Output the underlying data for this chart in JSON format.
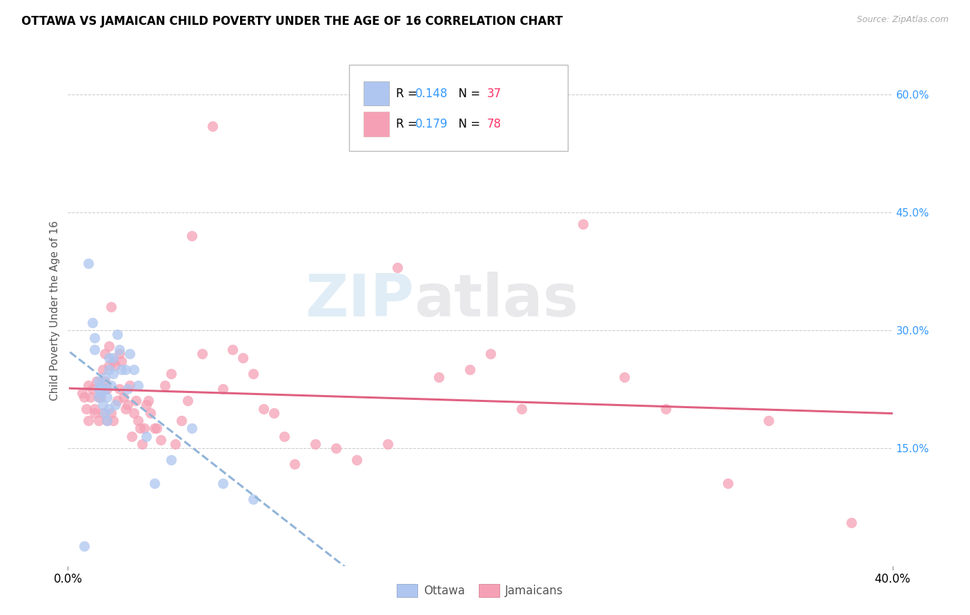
{
  "title": "OTTAWA VS JAMAICAN CHILD POVERTY UNDER THE AGE OF 16 CORRELATION CHART",
  "source": "Source: ZipAtlas.com",
  "ylabel": "Child Poverty Under the Age of 16",
  "watermark_line1": "ZIP",
  "watermark_line2": "atlas",
  "xlim": [
    0.0,
    0.4
  ],
  "ylim": [
    0.0,
    0.65
  ],
  "yticks": [
    0.15,
    0.3,
    0.45,
    0.6
  ],
  "ytick_labels": [
    "15.0%",
    "30.0%",
    "45.0%",
    "60.0%"
  ],
  "xtick_left_label": "0.0%",
  "xtick_right_label": "40.0%",
  "ottawa_color": "#aec6f0",
  "jamaican_color": "#f5a0b5",
  "ottawa_R": "0.148",
  "ottawa_N": "37",
  "jamaican_R": "0.179",
  "jamaican_N": "78",
  "legend_R_color": "#3399ff",
  "legend_N_color": "#ff3366",
  "ottawa_trend_color": "#90b4d8",
  "jamaican_trend_color": "#e06080",
  "grid_color": "#cccccc",
  "ottawa_scatter_x": [
    0.008,
    0.01,
    0.012,
    0.013,
    0.013,
    0.015,
    0.015,
    0.015,
    0.016,
    0.016,
    0.017,
    0.018,
    0.018,
    0.018,
    0.019,
    0.019,
    0.02,
    0.02,
    0.02,
    0.021,
    0.022,
    0.022,
    0.023,
    0.024,
    0.025,
    0.026,
    0.028,
    0.029,
    0.03,
    0.032,
    0.034,
    0.038,
    0.042,
    0.05,
    0.06,
    0.075,
    0.09
  ],
  "ottawa_scatter_y": [
    0.025,
    0.385,
    0.31,
    0.29,
    0.275,
    0.235,
    0.225,
    0.215,
    0.23,
    0.22,
    0.205,
    0.24,
    0.225,
    0.195,
    0.215,
    0.185,
    0.265,
    0.25,
    0.2,
    0.23,
    0.265,
    0.245,
    0.205,
    0.295,
    0.275,
    0.25,
    0.25,
    0.225,
    0.27,
    0.25,
    0.23,
    0.165,
    0.105,
    0.135,
    0.175,
    0.105,
    0.085
  ],
  "jamaican_scatter_x": [
    0.007,
    0.008,
    0.009,
    0.01,
    0.01,
    0.011,
    0.012,
    0.013,
    0.013,
    0.014,
    0.015,
    0.015,
    0.016,
    0.017,
    0.017,
    0.018,
    0.018,
    0.019,
    0.019,
    0.02,
    0.02,
    0.021,
    0.021,
    0.022,
    0.022,
    0.023,
    0.024,
    0.025,
    0.025,
    0.026,
    0.027,
    0.028,
    0.029,
    0.03,
    0.031,
    0.032,
    0.033,
    0.034,
    0.035,
    0.036,
    0.037,
    0.038,
    0.039,
    0.04,
    0.042,
    0.043,
    0.045,
    0.047,
    0.05,
    0.052,
    0.055,
    0.058,
    0.06,
    0.065,
    0.07,
    0.075,
    0.08,
    0.085,
    0.09,
    0.095,
    0.1,
    0.105,
    0.11,
    0.12,
    0.13,
    0.14,
    0.155,
    0.16,
    0.18,
    0.195,
    0.205,
    0.22,
    0.25,
    0.27,
    0.29,
    0.32,
    0.34,
    0.38
  ],
  "jamaican_scatter_y": [
    0.22,
    0.215,
    0.2,
    0.23,
    0.185,
    0.215,
    0.225,
    0.2,
    0.195,
    0.235,
    0.215,
    0.185,
    0.215,
    0.25,
    0.195,
    0.27,
    0.235,
    0.185,
    0.225,
    0.28,
    0.255,
    0.33,
    0.195,
    0.26,
    0.185,
    0.255,
    0.21,
    0.27,
    0.225,
    0.26,
    0.215,
    0.2,
    0.205,
    0.23,
    0.165,
    0.195,
    0.21,
    0.185,
    0.175,
    0.155,
    0.175,
    0.205,
    0.21,
    0.195,
    0.175,
    0.175,
    0.16,
    0.23,
    0.245,
    0.155,
    0.185,
    0.21,
    0.42,
    0.27,
    0.56,
    0.225,
    0.275,
    0.265,
    0.245,
    0.2,
    0.195,
    0.165,
    0.13,
    0.155,
    0.15,
    0.135,
    0.155,
    0.38,
    0.24,
    0.25,
    0.27,
    0.2,
    0.435,
    0.24,
    0.2,
    0.105,
    0.185,
    0.055
  ]
}
